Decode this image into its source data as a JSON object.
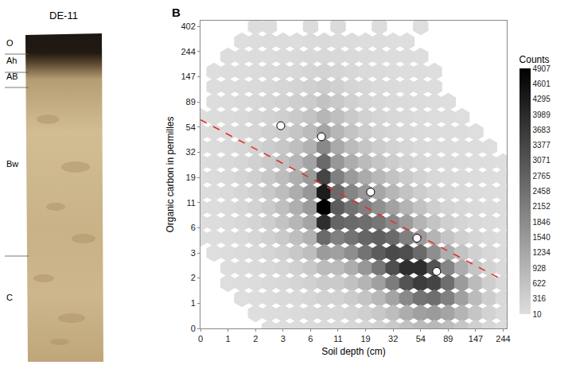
{
  "profile": {
    "title": "DE-11",
    "horizons": [
      "O",
      "Ah",
      "AB",
      "Bw",
      "C"
    ]
  },
  "chart_data": {
    "type": "hexbin",
    "annotations": [
      {
        "text": "B"
      }
    ],
    "x_label": "Soil depth (cm)",
    "y_label": "Organic carbon in permilles",
    "log": true,
    "grid": false,
    "xlim": [
      0,
      260
    ],
    "ylim": [
      0,
      450
    ],
    "xticks": [
      0,
      {
        "value": 0.65,
        "label": "1"
      },
      {
        "value": 1.72,
        "label": "2"
      },
      {
        "value": 3.48,
        "label": "3"
      },
      {
        "value": 6.39,
        "label": "6"
      },
      {
        "value": 11.18,
        "label": "11"
      },
      {
        "value": 19.09,
        "label": "19"
      },
      {
        "value": 32.12,
        "label": "32"
      },
      {
        "value": 53.6,
        "label": "54"
      },
      {
        "value": 89.02,
        "label": "89"
      },
      {
        "value": 147.41,
        "label": "147"
      },
      {
        "value": 243.69,
        "label": "244"
      }
    ],
    "yticks": [
      0,
      {
        "value": 0.65,
        "label": "1"
      },
      {
        "value": 1.72,
        "label": "2"
      },
      {
        "value": 3.48,
        "label": "3"
      },
      {
        "value": 6.39,
        "label": "6"
      },
      {
        "value": 11.18,
        "label": "11"
      },
      {
        "value": 19.09,
        "label": "19"
      },
      {
        "value": 32.12,
        "label": "32"
      },
      {
        "value": 53.6,
        "label": "54"
      },
      {
        "value": 89.02,
        "label": "89"
      },
      {
        "value": 147.41,
        "label": "147"
      },
      {
        "value": 243.69,
        "label": "244"
      },
      {
        "value": 402.43,
        "label": "402"
      }
    ],
    "cells": {
      "x": [
        0,
        0.28,
        0.65,
        1.12,
        1.72,
        2.49,
        3.48,
        4.75,
        6.39,
        8.49,
        11.18,
        14.64,
        19.09,
        24.79,
        32.12,
        41.52,
        53.6,
        69.1,
        89.02,
        114.6,
        147.41,
        189.6,
        243.69
      ],
      "y": [
        402.43,
        297.87,
        220.41,
        163.02,
        120.51,
        89.02,
        65.69,
        48.4,
        35.6,
        26.11,
        19.09,
        13.88,
        10.02,
        7.17,
        5.05,
        3.48,
        2.32,
        1.46,
        0.82,
        0.35,
        0
      ],
      "counts": [
        [
          null,
          null,
          null,
          null,
          40,
          30,
          null,
          null,
          60,
          null,
          80,
          null,
          null,
          30,
          null,
          null,
          20,
          null,
          null,
          null,
          null,
          null,
          null
        ],
        [
          null,
          null,
          null,
          20,
          40,
          50,
          60,
          40,
          80,
          90,
          60,
          50,
          40,
          30,
          20,
          20,
          null,
          null,
          null,
          null,
          null,
          null,
          null
        ],
        [
          null,
          null,
          30,
          40,
          60,
          60,
          80,
          90,
          120,
          140,
          120,
          90,
          70,
          50,
          40,
          30,
          20,
          null,
          null,
          null,
          null,
          null,
          null
        ],
        [
          null,
          20,
          40,
          60,
          80,
          100,
          120,
          150,
          200,
          260,
          200,
          150,
          110,
          80,
          60,
          40,
          30,
          20,
          null,
          null,
          null,
          null,
          null
        ],
        [
          null,
          30,
          50,
          80,
          100,
          140,
          180,
          240,
          300,
          400,
          320,
          220,
          160,
          110,
          80,
          50,
          40,
          30,
          null,
          null,
          null,
          null,
          null
        ],
        [
          null,
          40,
          60,
          100,
          140,
          200,
          260,
          340,
          420,
          600,
          480,
          320,
          220,
          150,
          100,
          70,
          50,
          30,
          20,
          null,
          null,
          null,
          null
        ],
        [
          20,
          50,
          80,
          120,
          180,
          260,
          340,
          450,
          600,
          900,
          700,
          450,
          300,
          200,
          140,
          90,
          60,
          40,
          30,
          20,
          null,
          null,
          null
        ],
        [
          30,
          60,
          100,
          150,
          220,
          320,
          420,
          560,
          800,
          1300,
          900,
          600,
          400,
          260,
          180,
          120,
          80,
          50,
          40,
          30,
          20,
          null,
          null
        ],
        [
          30,
          60,
          110,
          170,
          260,
          380,
          520,
          700,
          1000,
          1900,
          1200,
          800,
          560,
          380,
          260,
          170,
          110,
          70,
          50,
          40,
          30,
          20,
          null
        ],
        [
          40,
          70,
          120,
          190,
          300,
          450,
          650,
          900,
          1300,
          2600,
          1600,
          1100,
          800,
          560,
          380,
          250,
          160,
          100,
          70,
          50,
          40,
          30,
          20
        ],
        [
          40,
          70,
          120,
          200,
          320,
          500,
          750,
          1050,
          1500,
          3400,
          2100,
          1500,
          1150,
          850,
          600,
          400,
          250,
          150,
          100,
          70,
          50,
          30,
          20
        ],
        [
          30,
          60,
          110,
          190,
          300,
          480,
          750,
          1100,
          1600,
          4300,
          2600,
          2000,
          1600,
          1250,
          900,
          600,
          380,
          230,
          150,
          100,
          60,
          40,
          20
        ],
        [
          30,
          50,
          100,
          170,
          280,
          440,
          700,
          1050,
          1500,
          4900,
          2900,
          2400,
          2100,
          1750,
          1350,
          950,
          600,
          360,
          220,
          140,
          90,
          50,
          30
        ],
        [
          20,
          40,
          80,
          140,
          230,
          370,
          600,
          900,
          1300,
          3900,
          2700,
          2600,
          2500,
          2300,
          1900,
          1450,
          950,
          580,
          340,
          200,
          120,
          70,
          30
        ],
        [
          20,
          30,
          60,
          110,
          180,
          290,
          460,
          700,
          1000,
          2600,
          2100,
          2400,
          2700,
          2800,
          2600,
          2100,
          1500,
          950,
          560,
          320,
          180,
          90,
          40
        ],
        [
          null,
          20,
          40,
          80,
          130,
          210,
          330,
          500,
          720,
          1500,
          1400,
          1800,
          2400,
          2900,
          3300,
          3200,
          2600,
          1800,
          1100,
          600,
          320,
          160,
          60
        ],
        [
          null,
          null,
          30,
          50,
          90,
          140,
          220,
          330,
          480,
          800,
          800,
          1100,
          1600,
          2300,
          3200,
          3900,
          3900,
          3100,
          2000,
          1100,
          560,
          260,
          90
        ],
        [
          null,
          null,
          20,
          30,
          60,
          90,
          140,
          210,
          300,
          450,
          450,
          650,
          950,
          1400,
          2200,
          3100,
          3600,
          3400,
          2500,
          1500,
          800,
          360,
          120
        ],
        [
          null,
          null,
          null,
          20,
          40,
          60,
          90,
          130,
          190,
          280,
          280,
          400,
          580,
          850,
          1300,
          1900,
          2400,
          2500,
          2100,
          1400,
          800,
          380,
          130
        ],
        [
          null,
          null,
          null,
          null,
          20,
          40,
          60,
          80,
          120,
          170,
          170,
          240,
          340,
          500,
          750,
          1100,
          1400,
          1500,
          1300,
          950,
          560,
          280,
          100
        ],
        [
          null,
          null,
          null,
          null,
          null,
          20,
          40,
          50,
          80,
          110,
          110,
          150,
          210,
          300,
          450,
          650,
          800,
          850,
          750,
          550,
          330,
          170,
          60
        ]
      ]
    },
    "color_bar": {
      "title": "Counts",
      "range": [
        10,
        4907
      ],
      "ticks": [
        4907,
        4601,
        4295,
        3989,
        3683,
        3377,
        3071,
        2765,
        2458,
        2152,
        1846,
        1540,
        1234,
        928,
        622,
        316,
        10
      ]
    },
    "series": [
      {
        "type": "line",
        "line_style": "dash",
        "color": "#e0302a",
        "x": [
          0,
          244
        ],
        "values": [
          62,
          1.6
        ]
      },
      {
        "type": "scatter",
        "marker": "circle",
        "color": "#ffffff",
        "x": [
          3.3,
          8,
          21,
          50,
          72
        ],
        "values": [
          55,
          44,
          14,
          5,
          2.1
        ]
      }
    ]
  }
}
